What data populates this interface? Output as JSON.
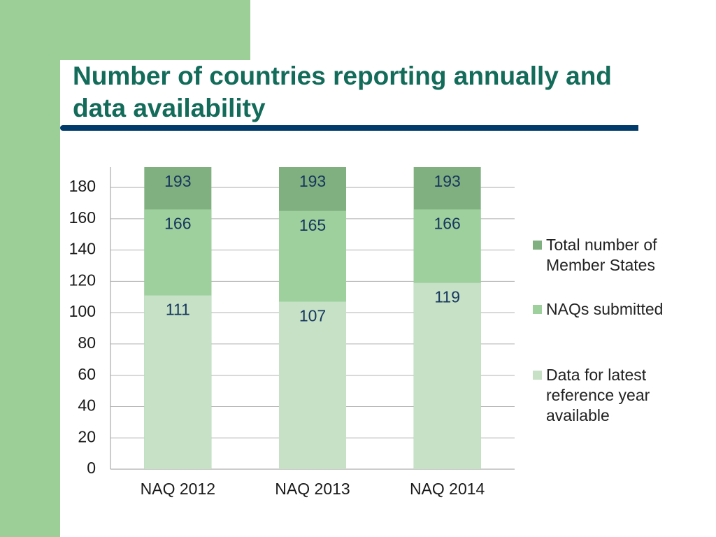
{
  "chart_data": {
    "type": "bar",
    "title": "Number of countries reporting annually and data availability",
    "categories": [
      "NAQ 2012",
      "NAQ 2013",
      "NAQ 2014"
    ],
    "series": [
      {
        "name": "Total number of Member States",
        "color": "#80b080",
        "values": [
          193,
          193,
          193
        ]
      },
      {
        "name": "NAQs submitted",
        "color": "#9dd09d",
        "values": [
          166,
          165,
          166
        ]
      },
      {
        "name": "Data for latest reference year available",
        "color": "#c6e1c6",
        "values": [
          111,
          107,
          119
        ]
      }
    ],
    "ylim": [
      0,
      193
    ],
    "yticks": [
      0,
      20,
      40,
      60,
      80,
      100,
      120,
      140,
      160,
      180
    ],
    "grid": true
  }
}
